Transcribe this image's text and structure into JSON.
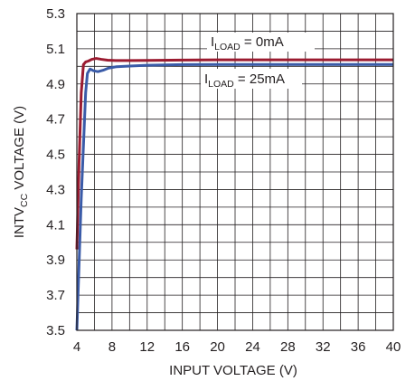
{
  "chart_data": {
    "type": "line",
    "xlabel": "INPUT VOLTAGE (V)",
    "ylabel": {
      "main": "INTV",
      "sub": "CC",
      "rest": " VOLTAGE (V)"
    },
    "xlim": [
      4,
      40
    ],
    "ylim": [
      3.5,
      5.3
    ],
    "xticks": [
      4,
      8,
      12,
      16,
      20,
      24,
      28,
      32,
      36,
      40
    ],
    "yticks": [
      3.5,
      3.7,
      3.9,
      4.1,
      4.3,
      4.5,
      4.7,
      4.9,
      5.1,
      5.3
    ],
    "xtick_labels": [
      "4",
      "8",
      "12",
      "16",
      "20",
      "24",
      "28",
      "32",
      "36",
      "40"
    ],
    "ytick_labels": [
      "3.5",
      "3.7",
      "3.9",
      "4.1",
      "4.3",
      "4.5",
      "4.7",
      "4.9",
      "5.1",
      "5.3"
    ],
    "x_grid_step": 2,
    "y_grid_step": 0.1,
    "grid": true,
    "series": [
      {
        "name": {
          "main": "I",
          "sub": "LOAD",
          "rest": " = 0mA"
        },
        "color": "#9b1b30",
        "x": [
          4.0,
          4.25,
          4.5,
          4.75,
          5.0,
          5.3,
          5.7,
          6.2,
          6.8,
          7.5,
          8.5,
          10,
          12,
          16,
          20,
          24,
          28,
          32,
          36,
          40
        ],
        "y": [
          3.96,
          4.45,
          4.85,
          5.01,
          5.025,
          5.03,
          5.04,
          5.045,
          5.04,
          5.035,
          5.033,
          5.033,
          5.034,
          5.036,
          5.037,
          5.037,
          5.037,
          5.037,
          5.037,
          5.037
        ]
      },
      {
        "name": {
          "main": "I",
          "sub": "LOAD",
          "rest": " = 25mA"
        },
        "color": "#3a5ba8",
        "x": [
          4.0,
          4.5,
          5.0,
          5.2,
          5.5,
          5.9,
          6.4,
          7.0,
          7.6,
          8.5,
          10,
          12,
          16,
          20,
          24,
          28,
          32,
          36,
          40
        ],
        "y": [
          3.5,
          4.25,
          4.85,
          4.96,
          4.985,
          4.975,
          4.97,
          4.978,
          4.99,
          4.998,
          5.002,
          5.006,
          5.01,
          5.011,
          5.011,
          5.011,
          5.011,
          5.011,
          5.011
        ]
      }
    ]
  }
}
